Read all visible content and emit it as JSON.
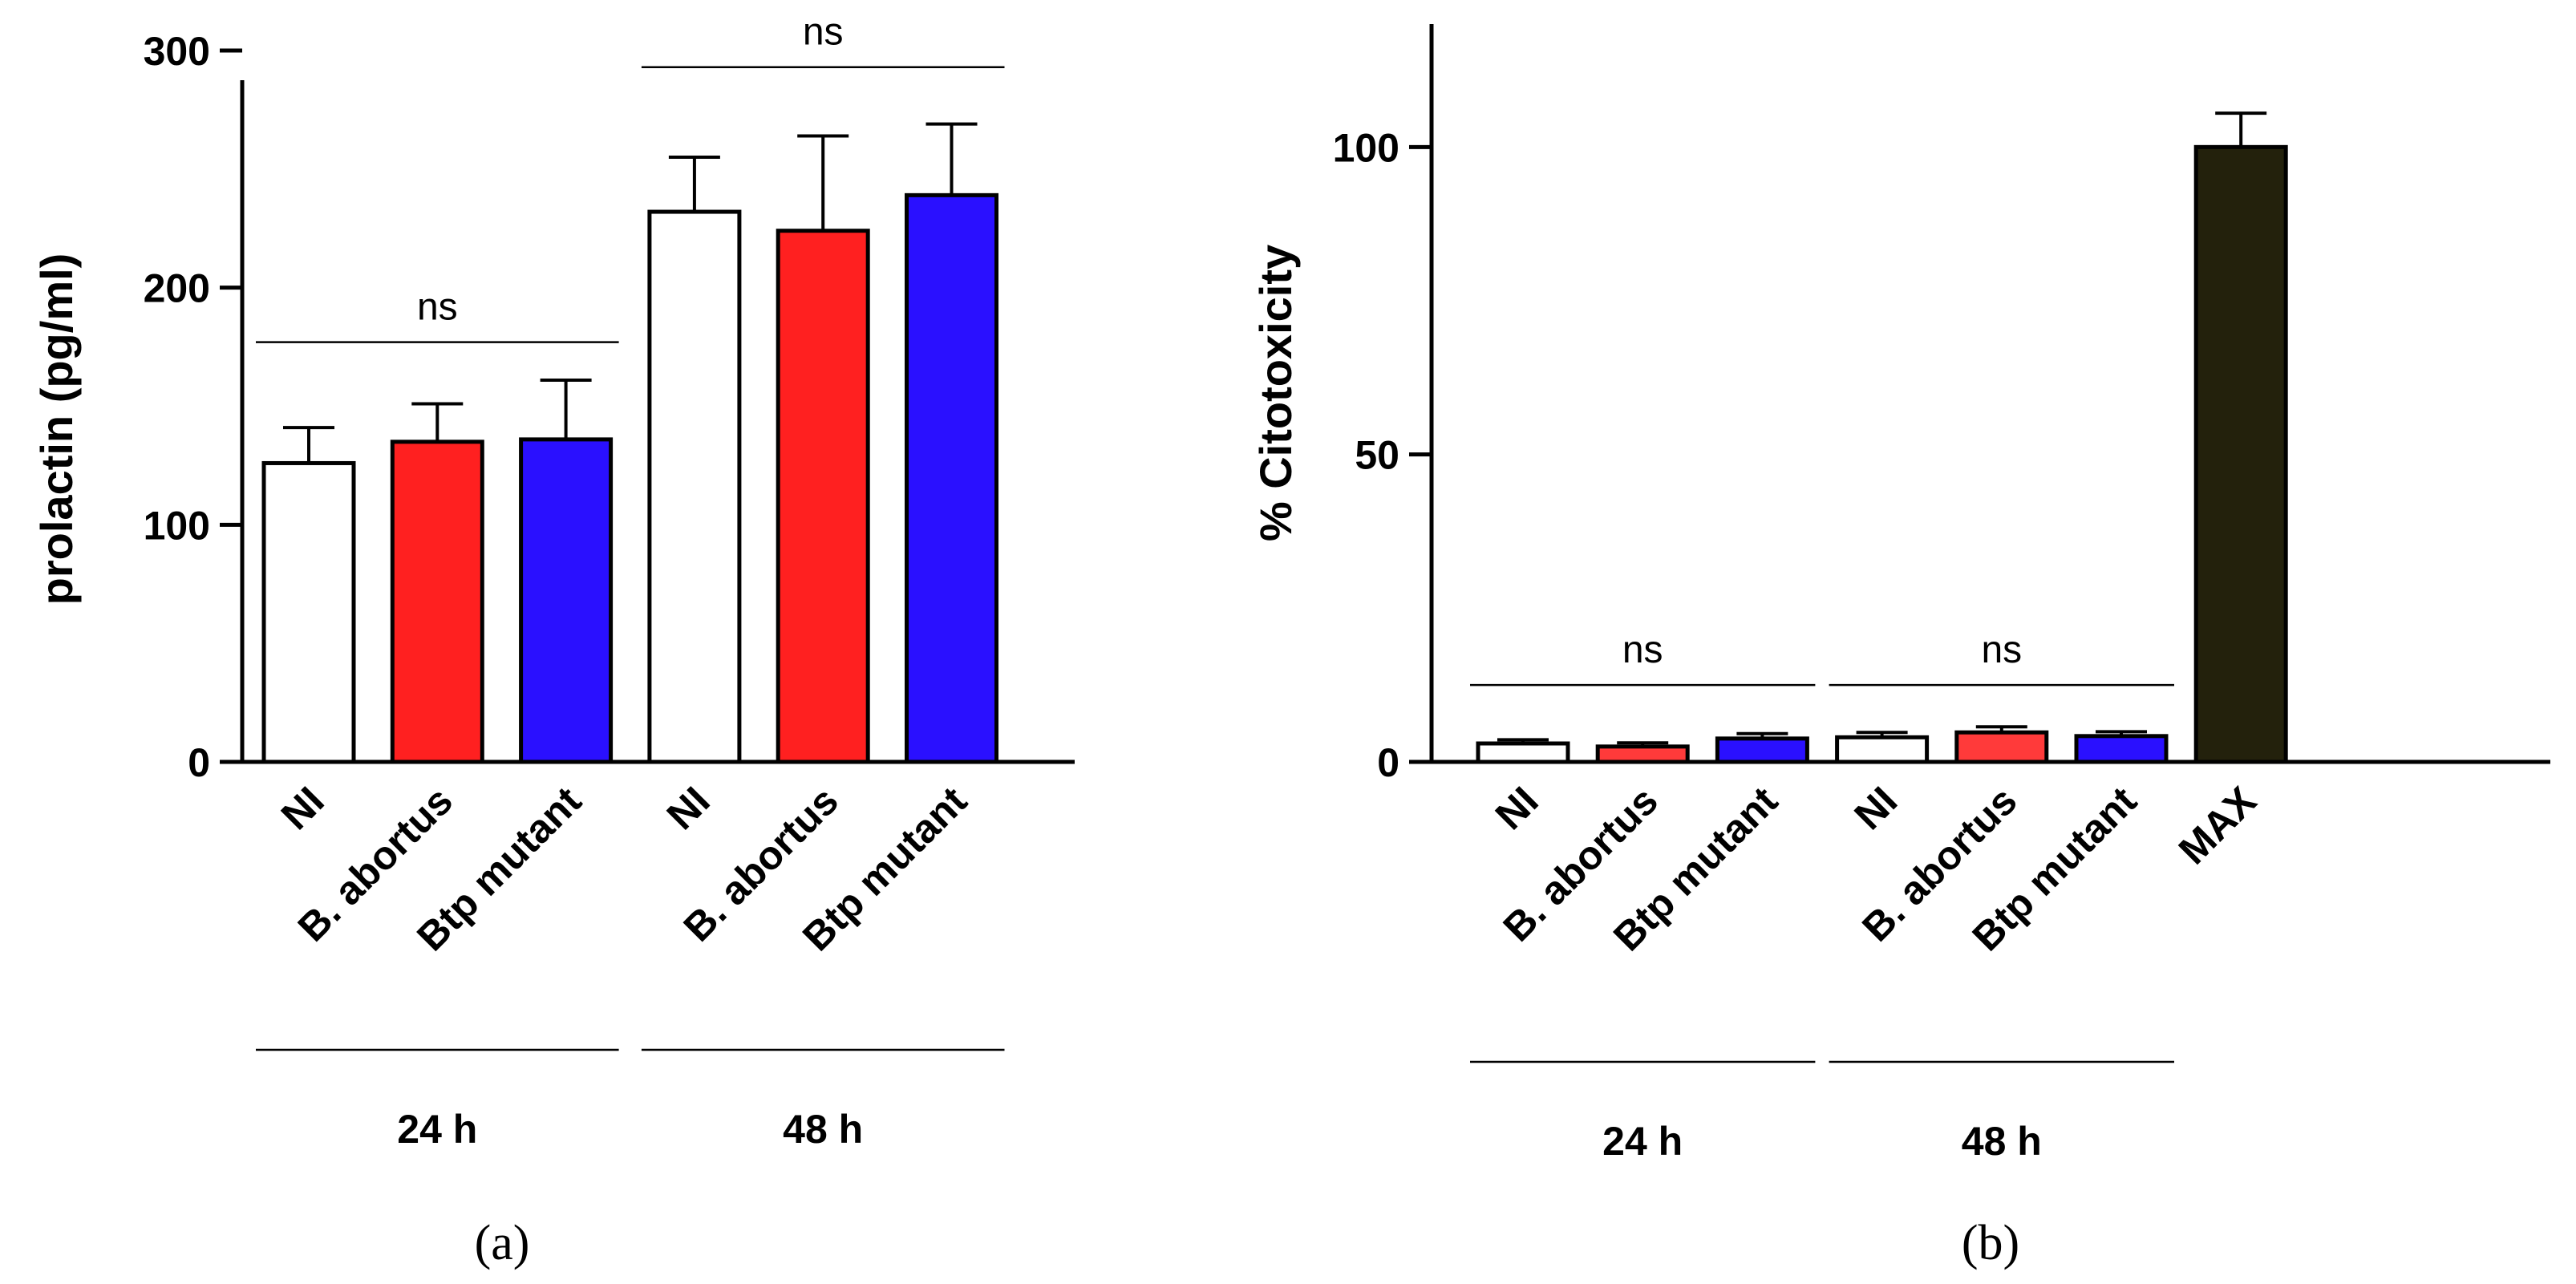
{
  "chart_data": [
    {
      "type": "bar",
      "panel_label": "(a)",
      "ylabel": "prolactin (pg/ml)",
      "ylim": [
        0,
        300
      ],
      "yticks": [
        0,
        100,
        200,
        300
      ],
      "categories": [
        "NI",
        "B. abortus",
        "Btp mutant",
        "NI",
        "B. abortus",
        "Btp mutant"
      ],
      "values": [
        126,
        135,
        136,
        232,
        224,
        239
      ],
      "errors": [
        15,
        16,
        25,
        23,
        40,
        30
      ],
      "bar_colors": [
        "#ffffff",
        "#ff2020",
        "#2a10ff",
        "#ffffff",
        "#ff2020",
        "#2a10ff"
      ],
      "groups": [
        {
          "label": "24 h",
          "from": 0,
          "to": 2
        },
        {
          "label": "48 h",
          "from": 3,
          "to": 5
        }
      ],
      "significance": [
        {
          "label": "ns",
          "from": 0,
          "to": 2,
          "y": 177
        },
        {
          "label": "ns",
          "from": 3,
          "to": 5,
          "y": 293
        }
      ]
    },
    {
      "type": "bar",
      "panel_label": "(b)",
      "ylabel": "% Citotoxicity",
      "ylim": [
        0,
        120
      ],
      "yticks": [
        0,
        50,
        100
      ],
      "categories": [
        "NI",
        "B. abortus",
        "Btp mutant",
        "NI",
        "B. abortus",
        "Btp mutant",
        "MAX"
      ],
      "values": [
        3,
        2.5,
        3.8,
        4,
        4.8,
        4.2,
        100
      ],
      "errors": [
        0.6,
        0.6,
        0.8,
        0.8,
        0.9,
        0.7,
        5.5
      ],
      "bar_colors": [
        "#ffffff",
        "#ff3a3a",
        "#2a10ff",
        "#ffffff",
        "#ff3a3a",
        "#2a10ff",
        "#23210c"
      ],
      "groups": [
        {
          "label": "24 h",
          "from": 0,
          "to": 2
        },
        {
          "label": "48 h",
          "from": 3,
          "to": 5
        }
      ],
      "significance": [
        {
          "label": "ns",
          "from": 0,
          "to": 2,
          "y": 12.5
        },
        {
          "label": "ns",
          "from": 3,
          "to": 5,
          "y": 12.5
        }
      ]
    }
  ]
}
